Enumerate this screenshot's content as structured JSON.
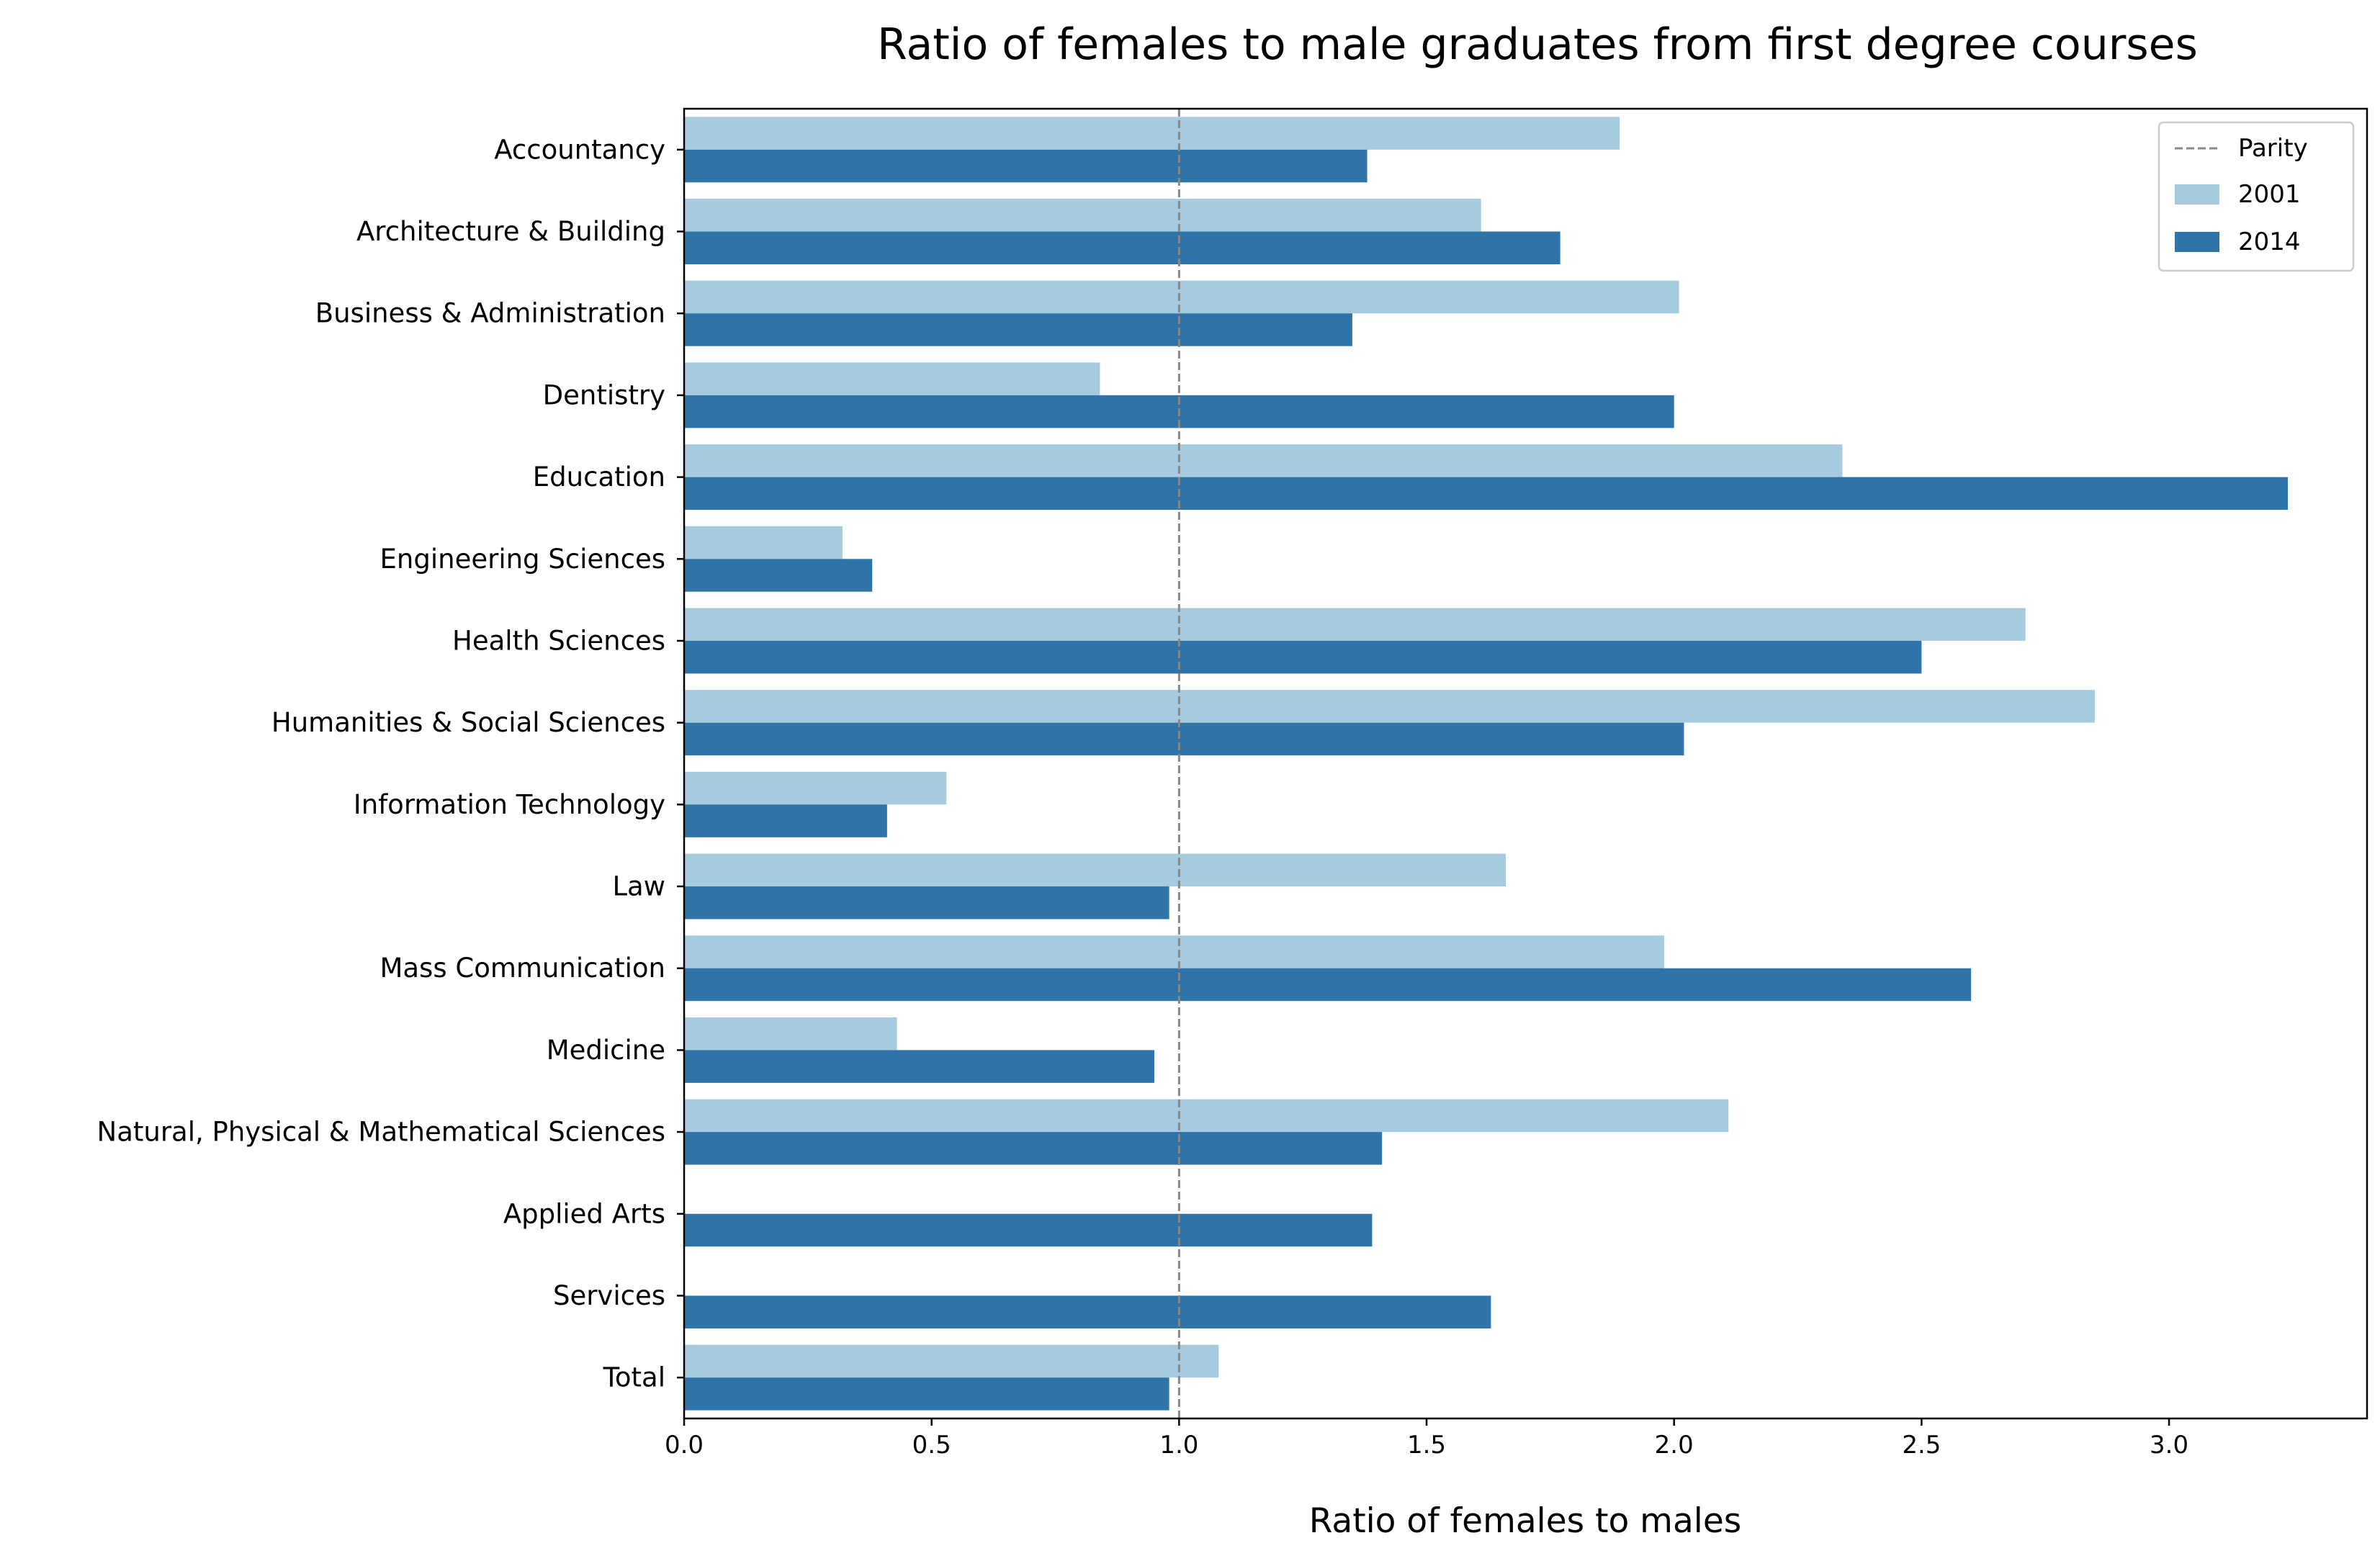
{
  "chart_data": {
    "type": "bar",
    "orientation": "horizontal",
    "title": "Ratio of females to male graduates from first degree courses",
    "xlabel": "Ratio of females to males",
    "ylabel": "",
    "xlim": [
      0,
      3.4
    ],
    "xticks": [
      "0.0",
      "0.5",
      "1.0",
      "1.5",
      "2.0",
      "2.5",
      "3.0"
    ],
    "grid": false,
    "legend_position": "top-right",
    "reference_line": {
      "name": "Parity",
      "value": 1.0,
      "color": "#888888",
      "style": "dashed"
    },
    "categories": [
      "Accountancy",
      "Architecture & Building",
      "Business & Administration",
      "Dentistry",
      "Education",
      "Engineering Sciences",
      "Health Sciences",
      "Humanities & Social Sciences",
      "Information Technology",
      "Law",
      "Mass Communication",
      "Medicine",
      "Natural, Physical & Mathematical Sciences",
      "Applied Arts",
      "Services",
      "Total"
    ],
    "series": [
      {
        "name": "2001",
        "color": "#a6cbdf",
        "values": [
          1.89,
          1.61,
          2.01,
          0.84,
          2.34,
          0.32,
          2.71,
          2.85,
          0.53,
          1.66,
          1.98,
          0.43,
          2.11,
          null,
          null,
          1.08
        ]
      },
      {
        "name": "2014",
        "color": "#2f74a8",
        "values": [
          1.38,
          1.77,
          1.35,
          2.0,
          3.24,
          0.38,
          2.5,
          2.02,
          0.41,
          0.98,
          2.6,
          0.95,
          1.41,
          1.39,
          1.63,
          0.98
        ]
      }
    ]
  }
}
